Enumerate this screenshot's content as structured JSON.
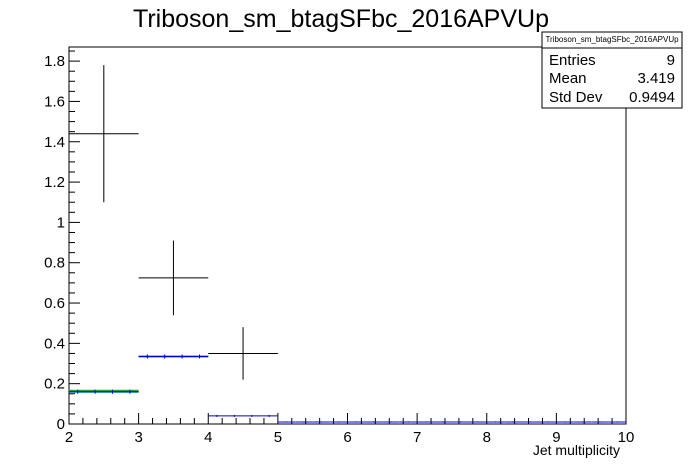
{
  "chart_data": {
    "type": "histogram",
    "title": "Triboson_sm_btagSFbc_2016APVUp",
    "xlabel": "Jet multiplicity",
    "ylabel": "",
    "xlim": [
      2,
      10
    ],
    "ylim": [
      0,
      1.87
    ],
    "x_ticks": [
      "2",
      "3",
      "4",
      "5",
      "6",
      "7",
      "8",
      "9",
      "10"
    ],
    "y_ticks": [
      "0",
      "0.2",
      "0.4",
      "0.6",
      "0.8",
      "1",
      "1.2",
      "1.4",
      "1.6",
      "1.8"
    ],
    "grid": false,
    "stats_box": {
      "name": "Triboson_sm_btagSFbc_2016APVUp",
      "rows": [
        {
          "label": "Entries",
          "value": "9"
        },
        {
          "label": "Mean",
          "value": "3.419"
        },
        {
          "label": "Std Dev",
          "value": "0.9494"
        }
      ]
    },
    "series": [
      {
        "style": "error-cross",
        "color": "#000000",
        "bins": [
          {
            "xlow": 2,
            "xhigh": 3,
            "y": 1.44,
            "ylow": 1.1,
            "yhigh": 1.78
          },
          {
            "xlow": 3,
            "xhigh": 4,
            "y": 0.725,
            "ylow": 0.54,
            "yhigh": 0.91
          },
          {
            "xlow": 4,
            "xhigh": 5,
            "y": 0.35,
            "ylow": 0.22,
            "yhigh": 0.48
          }
        ]
      },
      {
        "style": "hist-band",
        "color": "#22aa22",
        "values": [
          0.165,
          0.335,
          0,
          0,
          0,
          0,
          0,
          0
        ]
      },
      {
        "style": "hist-band",
        "color": "#00a0a0",
        "values": [
          0.16,
          0.335,
          0,
          0,
          0,
          0,
          0,
          0
        ]
      },
      {
        "style": "hist-errors",
        "color": "#0000cc",
        "bin_width": 0.25,
        "values": [
          0.16,
          0.16,
          0.16,
          0.16,
          0.335,
          0.335,
          0.335,
          0.335,
          0.04,
          0.04,
          0.04,
          0.04,
          0.01,
          0.01,
          0.01,
          0.01,
          0.01,
          0.01,
          0.01,
          0.01,
          0.01,
          0.01,
          0.01,
          0.01,
          0.01,
          0.01,
          0.01,
          0.01,
          0.01,
          0.01,
          0.01,
          0.01
        ],
        "errors": [
          0.01,
          0.01,
          0.01,
          0.01,
          0.01,
          0.01,
          0.01,
          0.01,
          0.005,
          0.005,
          0.005,
          0.005,
          0.003,
          0.003,
          0.003,
          0.003,
          0.003,
          0.003,
          0.003,
          0.003,
          0.003,
          0.003,
          0.003,
          0.003,
          0.003,
          0.003,
          0.003,
          0.003,
          0.003,
          0.003,
          0.003,
          0.003
        ]
      }
    ]
  }
}
